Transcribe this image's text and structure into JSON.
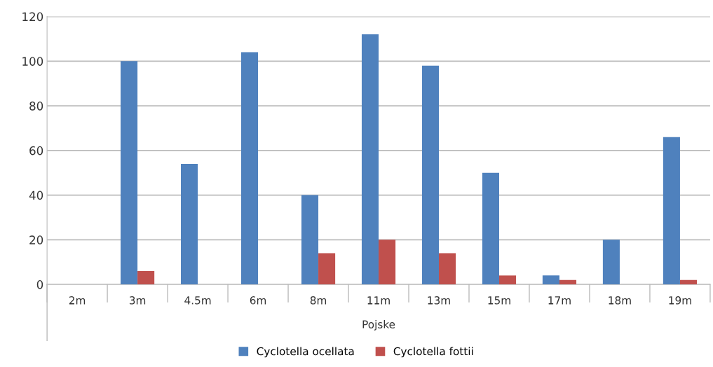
{
  "chart_data": {
    "type": "bar",
    "xlabel": "Pojske",
    "categories": [
      "2m",
      "3m",
      "4.5m",
      "6m",
      "8m",
      "11m",
      "13m",
      "15m",
      "17m",
      "18m",
      "19m"
    ],
    "series": [
      {
        "name": "Cyclotella ocellata",
        "color": "#4f81bd",
        "values": [
          0,
          100,
          54,
          104,
          40,
          112,
          98,
          50,
          4,
          20,
          66
        ]
      },
      {
        "name": "Cyclotella fottii",
        "color": "#c0504d",
        "values": [
          0,
          6,
          0,
          0,
          14,
          20,
          14,
          4,
          2,
          0,
          2
        ]
      }
    ],
    "ylim": [
      0,
      120
    ],
    "yticks": [
      0,
      20,
      40,
      60,
      80,
      100,
      120
    ],
    "grid": "y",
    "legend": "bottom"
  }
}
